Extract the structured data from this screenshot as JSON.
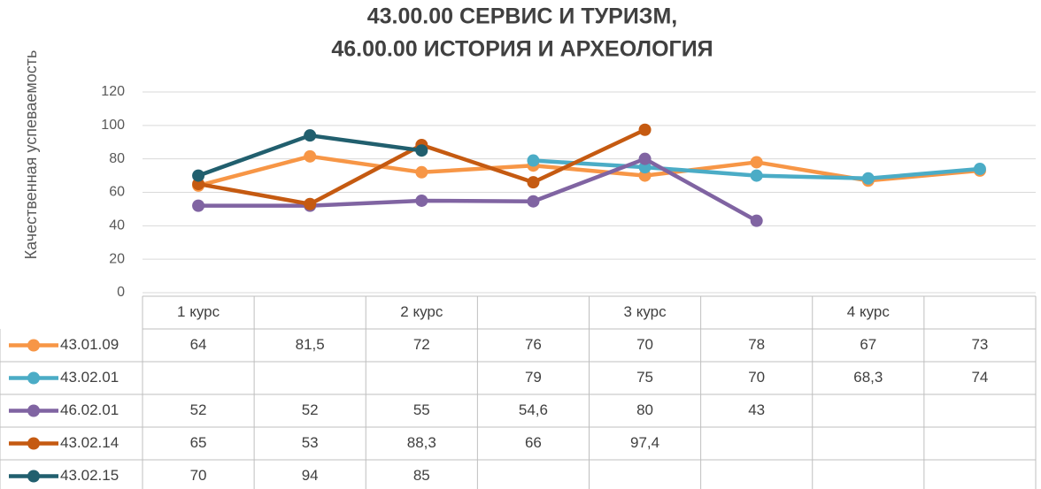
{
  "chart_data": {
    "type": "line",
    "title": [
      "43.00.00 СЕРВИС И ТУРИЗМ,",
      "46.00.00 ИСТОРИЯ И АРХЕОЛОГИЯ"
    ],
    "y_label": "Качественная успеваемость",
    "categories": [
      "1 курс",
      null,
      "2 курс",
      null,
      "3 курс",
      null,
      "4 курс",
      null
    ],
    "ylim": [
      0,
      120
    ],
    "yticks": [
      0,
      20,
      40,
      60,
      80,
      100,
      120
    ],
    "grid": true,
    "series": [
      {
        "name": "43.01.09",
        "color": "#f79646",
        "values": [
          64,
          81.5,
          72,
          76,
          70,
          78,
          67,
          73
        ],
        "value_labels": [
          "64",
          "81,5",
          "72",
          "76",
          "70",
          "78",
          "67",
          "73"
        ]
      },
      {
        "name": "43.02.01",
        "color": "#4bacc6",
        "values": [
          null,
          null,
          null,
          79,
          75,
          70,
          68.3,
          74
        ],
        "value_labels": [
          null,
          null,
          null,
          "79",
          "75",
          "70",
          "68,3",
          "74"
        ]
      },
      {
        "name": "46.02.01",
        "color": "#8064a2",
        "values": [
          52,
          52,
          55,
          54.6,
          80,
          43,
          null,
          null
        ],
        "value_labels": [
          "52",
          "52",
          "55",
          "54,6",
          "80",
          "43",
          null,
          null
        ]
      },
      {
        "name": "43.02.14",
        "color": "#c55a11",
        "values": [
          65,
          53,
          88.3,
          66,
          97.4,
          null,
          null,
          null
        ],
        "value_labels": [
          "65",
          "53",
          "88,3",
          "66",
          "97,4",
          null,
          null,
          null
        ]
      },
      {
        "name": "43.02.15",
        "color": "#215f6e",
        "values": [
          70,
          94,
          85,
          null,
          null,
          null,
          null,
          null
        ],
        "value_labels": [
          "70",
          "94",
          "85",
          null,
          null,
          null,
          null,
          null
        ]
      }
    ]
  }
}
